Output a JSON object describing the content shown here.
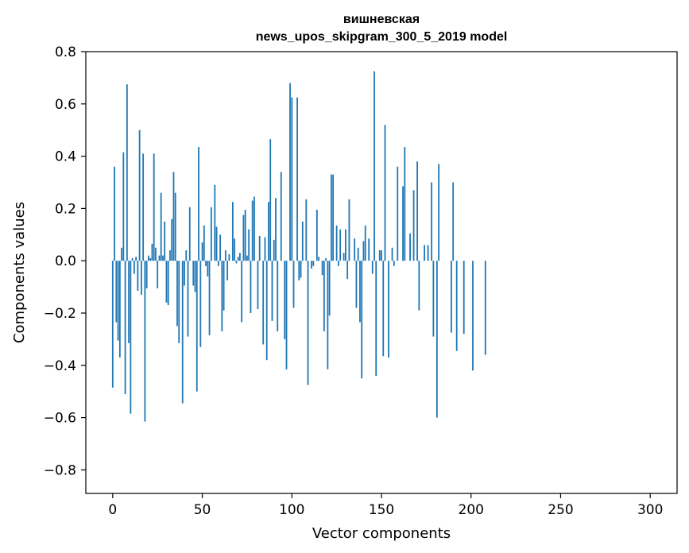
{
  "chart_data": {
    "type": "bar",
    "title": "вишневская",
    "subtitle": "news_upos_skipgram_300_5_2019 model",
    "xlabel": "Vector components",
    "ylabel": "Components values",
    "xlim": [
      -15,
      315
    ],
    "ylim": [
      -0.89,
      0.8
    ],
    "xticks": [
      0,
      50,
      100,
      150,
      200,
      250,
      300
    ],
    "xtick_labels": [
      "0",
      "50",
      "100",
      "150",
      "200",
      "250",
      "300"
    ],
    "yticks": [
      0.8,
      0.6,
      0.4,
      0.2,
      0.0,
      -0.2,
      -0.4,
      -0.6,
      -0.8
    ],
    "ytick_labels": [
      "0.8",
      "0.6",
      "0.4",
      "0.2",
      "0.0",
      "−0.2",
      "−0.4",
      "−0.6",
      "−0.8"
    ],
    "grid": false,
    "bar_color": "#1f77b4",
    "x": "0..299",
    "values": [
      -0.485,
      0.36,
      -0.235,
      -0.305,
      -0.37,
      0.05,
      0.415,
      -0.51,
      0.675,
      -0.315,
      -0.585,
      0.01,
      -0.05,
      0.015,
      -0.115,
      0.5,
      -0.13,
      0.41,
      -0.615,
      -0.105,
      0.02,
      0.01,
      0.065,
      0.41,
      0.05,
      -0.105,
      0.02,
      0.26,
      0.02,
      0.15,
      -0.16,
      -0.17,
      0.04,
      0.16,
      0.34,
      0.26,
      -0.25,
      -0.315,
      0.0,
      -0.545,
      -0.095,
      0.04,
      -0.29,
      0.205,
      0.0,
      -0.095,
      -0.12,
      -0.5,
      0.435,
      -0.33,
      0.07,
      0.135,
      -0.02,
      -0.06,
      -0.285,
      0.205,
      0.0,
      0.29,
      0.13,
      -0.02,
      0.1,
      -0.27,
      -0.19,
      0.04,
      -0.075,
      0.025,
      0.0,
      0.225,
      0.085,
      -0.01,
      0.015,
      0.03,
      -0.235,
      0.175,
      0.195,
      0.02,
      0.12,
      -0.2,
      0.23,
      0.245,
      0.0,
      -0.185,
      0.095,
      0.0,
      -0.32,
      0.09,
      -0.38,
      0.225,
      0.465,
      -0.23,
      0.08,
      0.24,
      -0.27,
      0.0,
      0.34,
      0.0,
      -0.3,
      -0.415,
      0.0,
      0.68,
      0.625,
      -0.18,
      0.0,
      0.625,
      -0.075,
      -0.065,
      0.15,
      0.0,
      0.235,
      -0.475,
      0.0,
      -0.03,
      -0.02,
      0.0,
      0.195,
      0.015,
      0.0,
      -0.055,
      -0.27,
      0.01,
      -0.415,
      -0.21,
      0.33,
      0.33,
      0.0,
      0.135,
      -0.02,
      0.12,
      0.0,
      0.03,
      0.12,
      -0.07,
      0.235,
      0.0,
      0.0,
      0.085,
      -0.18,
      0.05,
      -0.235,
      -0.45,
      0.075,
      0.135,
      0.0,
      0.085,
      0.0,
      -0.05,
      0.725,
      -0.44,
      0.0,
      0.04,
      0.04,
      -0.365,
      0.52,
      0.0,
      -0.37,
      0.0,
      0.05,
      -0.02,
      0.0,
      0.36,
      0.0,
      0.0,
      0.285,
      0.435,
      0.0,
      0.0,
      0.105,
      0.0,
      0.27,
      0.0,
      0.38,
      -0.19,
      0.0,
      0.0,
      0.06,
      0.0,
      0.06,
      0.0,
      0.3,
      -0.29,
      0.0,
      -0.6,
      0.37,
      0.0,
      0.0,
      0.0,
      0.0,
      0.0,
      0.0,
      -0.275,
      0.3,
      0.0,
      -0.345,
      0.0,
      0.0,
      0.0,
      -0.28,
      0.0,
      0.0,
      0.0,
      0.0,
      -0.42,
      0.0,
      0.0,
      0.0,
      0.0,
      0.0,
      0.0,
      -0.36,
      0.0,
      0.0,
      0.0,
      0.0,
      0.0,
      0.0,
      0.0,
      0.0,
      0.0,
      0.0,
      0.0,
      0.0,
      0.0,
      0.0,
      0.0,
      0.0,
      0.0,
      0.0,
      0.0,
      0.0,
      0.0,
      0.0,
      0.0,
      0.0,
      0.0,
      0.0,
      0.0,
      0.0,
      0.0,
      0.0,
      0.0,
      0.0,
      0.0,
      0.0,
      0.0,
      0.0,
      0.0,
      0.0,
      0.0,
      0.0,
      0.0,
      0.0,
      0.0,
      0.0,
      0.0,
      0.0,
      0.0,
      0.0,
      0.0,
      0.0,
      0.0,
      0.0,
      0.0,
      0.0,
      0.0,
      0.0,
      0.0,
      0.0,
      0.0,
      0.0,
      0.0,
      0.0,
      0.0,
      0.0,
      0.0,
      0.0,
      0.0,
      0.0,
      0.0,
      0.0,
      0.0,
      0.0,
      0.0,
      0.0,
      0.0,
      0.0,
      0.0,
      0.0,
      0.0,
      0.0,
      0.0,
      0.0,
      0.0,
      0.0,
      0.0,
      0.0,
      0.0,
      0.0,
      0.0,
      0.0,
      0.0,
      0.0,
      0.0,
      0.0,
      0.0
    ]
  }
}
